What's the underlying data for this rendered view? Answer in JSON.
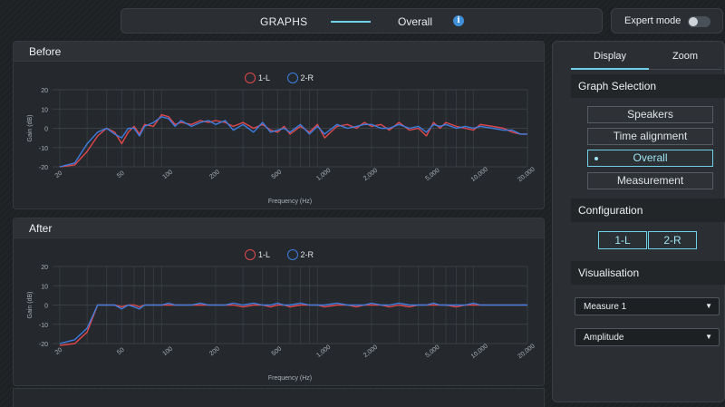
{
  "header": {
    "title": "GRAPHS",
    "subtitle": "Overall",
    "info_icon": "info-icon",
    "expert_mode_label": "Expert mode",
    "expert_mode_on": false
  },
  "charts": {
    "before_title": "Before",
    "after_title": "After"
  },
  "chart_data": [
    {
      "type": "line",
      "title": "Before",
      "xlabel": "Frequency (Hz)",
      "ylabel": "Gain (dB)",
      "xscale": "log",
      "xlim": [
        18,
        20000
      ],
      "ylim": [
        -20,
        20
      ],
      "x_ticks": [
        "20",
        "50",
        "100",
        "200",
        "500",
        "1,000",
        "2,000",
        "5,000",
        "10,000",
        "20,000"
      ],
      "y_ticks": [
        "20",
        "10",
        "0",
        "-10",
        "-20"
      ],
      "grid": true,
      "legend_position": "top-center",
      "x": [
        20,
        25,
        30,
        35,
        40,
        45,
        50,
        55,
        60,
        65,
        70,
        80,
        90,
        100,
        110,
        120,
        140,
        160,
        180,
        200,
        230,
        260,
        300,
        350,
        400,
        450,
        500,
        550,
        600,
        700,
        800,
        900,
        1000,
        1200,
        1400,
        1600,
        1800,
        2000,
        2300,
        2600,
        3000,
        3500,
        4000,
        4500,
        5000,
        5500,
        6000,
        7000,
        8000,
        9000,
        10000,
        12000,
        14000,
        16000,
        18000,
        20000
      ],
      "series": [
        {
          "name": "1-L",
          "color": "#e0484c",
          "values": [
            -20,
            -19,
            -12,
            -4,
            0,
            -2,
            -8,
            -2,
            1,
            -3,
            2,
            1,
            7,
            6,
            2,
            3,
            2,
            4,
            3,
            4,
            3,
            1,
            3,
            0,
            2,
            -1,
            -2,
            1,
            -3,
            1,
            -2,
            2,
            -5,
            1,
            2,
            0,
            3,
            1,
            2,
            -1,
            3,
            -1,
            0,
            -4,
            3,
            0,
            3,
            1,
            0,
            -1,
            2,
            1,
            0,
            -2,
            -3,
            -3
          ]
        },
        {
          "name": "2-R",
          "color": "#3d7de0",
          "values": [
            -20,
            -18,
            -8,
            -2,
            0,
            -3,
            -5,
            0,
            0,
            -4,
            1,
            3,
            6,
            5,
            1,
            4,
            1,
            3,
            4,
            2,
            4,
            -1,
            2,
            -2,
            3,
            -2,
            -1,
            0,
            -2,
            2,
            -3,
            1,
            -3,
            2,
            0,
            1,
            2,
            2,
            0,
            0,
            2,
            0,
            1,
            -2,
            2,
            1,
            2,
            0,
            1,
            0,
            1,
            0,
            -1,
            -1,
            -3,
            -3
          ]
        }
      ]
    },
    {
      "type": "line",
      "title": "After",
      "xlabel": "Frequency (Hz)",
      "ylabel": "Gain (dB)",
      "xscale": "log",
      "xlim": [
        18,
        20000
      ],
      "ylim": [
        -20,
        20
      ],
      "x_ticks": [
        "20",
        "50",
        "100",
        "200",
        "500",
        "1,000",
        "2,000",
        "5,000",
        "10,000",
        "20,000"
      ],
      "y_ticks": [
        "20",
        "10",
        "0",
        "-10",
        "-20"
      ],
      "grid": true,
      "legend_position": "top-center",
      "x": [
        20,
        25,
        30,
        35,
        40,
        45,
        50,
        55,
        60,
        65,
        70,
        80,
        90,
        100,
        110,
        120,
        140,
        160,
        180,
        200,
        230,
        260,
        300,
        350,
        400,
        450,
        500,
        550,
        600,
        700,
        800,
        900,
        1000,
        1200,
        1400,
        1600,
        1800,
        2000,
        2300,
        2600,
        3000,
        3500,
        4000,
        4500,
        5000,
        5500,
        6000,
        7000,
        8000,
        9000,
        10000,
        12000,
        14000,
        16000,
        18000,
        20000
      ],
      "series": [
        {
          "name": "1-L",
          "color": "#e0484c",
          "values": [
            -21,
            -20,
            -14,
            0,
            0,
            0,
            -1,
            0,
            0,
            -1,
            0,
            0,
            0,
            0,
            0,
            0,
            0,
            0,
            0,
            0,
            0,
            0,
            -1,
            0,
            0,
            -1,
            0,
            0,
            -1,
            0,
            0,
            0,
            -1,
            0,
            0,
            -1,
            0,
            0,
            0,
            -1,
            0,
            -1,
            0,
            0,
            0,
            0,
            0,
            -1,
            0,
            0,
            0,
            0,
            0,
            0,
            0,
            0
          ]
        },
        {
          "name": "2-R",
          "color": "#3d7de0",
          "values": [
            -20,
            -18,
            -12,
            0,
            0,
            0,
            -2,
            0,
            -1,
            -2,
            0,
            0,
            0,
            1,
            0,
            0,
            0,
            1,
            0,
            0,
            0,
            1,
            0,
            1,
            0,
            0,
            1,
            0,
            0,
            1,
            0,
            0,
            0,
            1,
            0,
            0,
            0,
            1,
            0,
            0,
            1,
            0,
            0,
            0,
            1,
            0,
            0,
            0,
            0,
            1,
            0,
            0,
            0,
            0,
            0,
            0
          ]
        }
      ]
    }
  ],
  "sidebar": {
    "tabs": [
      "Display",
      "Zoom"
    ],
    "graph_selection_title": "Graph Selection",
    "graph_options": [
      "Speakers",
      "Time alignment",
      "Overall",
      "Measurement"
    ],
    "graph_selected": "Overall",
    "configuration_title": "Configuration",
    "config_options": [
      "1-L",
      "2-R"
    ],
    "visualisation_title": "Visualisation",
    "measure_value": "Measure 1",
    "mode_value": "Amplitude",
    "accent_color": "#6fd0e8"
  }
}
